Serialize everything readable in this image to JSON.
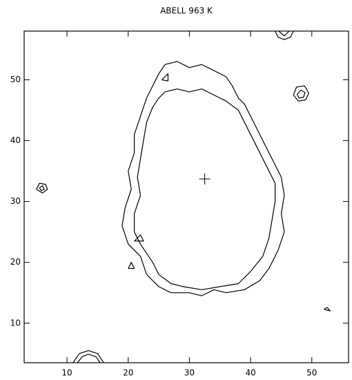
{
  "chart_data": {
    "type": "contour",
    "title": "ABELL 963  K",
    "color": "#000000",
    "xlim": [
      3,
      56
    ],
    "ylim": [
      3.5,
      58
    ],
    "xticks": [
      10,
      20,
      30,
      40,
      50
    ],
    "yticks": [
      10,
      20,
      30,
      40,
      50
    ],
    "marker": {
      "x": 32.5,
      "y": 33.7
    },
    "contours": [
      {
        "x": [
          26,
          28,
          30,
          32,
          34,
          36,
          37,
          38,
          39,
          40,
          41,
          42,
          43.5,
          45,
          45.5,
          45,
          45.5,
          44.5,
          43,
          41.5,
          39,
          36,
          34,
          32,
          30,
          27,
          25,
          23,
          22,
          20,
          19,
          19.5,
          20.5,
          20,
          21,
          21,
          22,
          23,
          24,
          25,
          26
        ],
        "y": [
          52.5,
          53,
          52,
          52.5,
          51.5,
          50.5,
          49,
          47,
          46,
          44,
          42,
          40,
          37,
          34,
          31,
          28,
          25,
          22,
          19,
          17,
          15.5,
          15,
          15.5,
          14.5,
          15,
          15,
          16,
          18,
          21,
          23,
          26,
          29,
          32,
          35,
          38,
          41,
          44,
          47,
          49,
          51,
          52.5
        ]
      },
      {
        "x": [
          26,
          28,
          30,
          32,
          34,
          36,
          38,
          39,
          40,
          41,
          42.5,
          44,
          44,
          43.5,
          43,
          42,
          40,
          38,
          35,
          32,
          29,
          27,
          25,
          24,
          22,
          21,
          21,
          22,
          21.5,
          22,
          22.5,
          23,
          24,
          25,
          26
        ],
        "y": [
          48,
          48.5,
          48,
          48.5,
          47.5,
          46.5,
          45,
          43,
          41,
          39,
          36,
          33,
          30,
          27,
          24,
          21,
          18.5,
          16.5,
          16,
          15.5,
          16,
          16.5,
          18,
          20,
          23,
          25,
          28,
          31,
          34,
          37,
          40,
          43,
          45.5,
          47,
          48
        ]
      },
      {
        "x": [
          5,
          5.5,
          6.5,
          6.8,
          6,
          5
        ],
        "y": [
          32,
          33,
          32.8,
          32,
          31.4,
          32
        ]
      },
      {
        "x": [
          5.5,
          6,
          6.3,
          5.8,
          5.5
        ],
        "y": [
          32.2,
          32.6,
          32,
          31.8,
          32.2
        ]
      },
      {
        "x": [
          47,
          47.5,
          48.8,
          49.5,
          49,
          47.8,
          47
        ],
        "y": [
          47.5,
          48.8,
          49,
          47.8,
          46.7,
          46.5,
          47.5
        ]
      },
      {
        "x": [
          47.6,
          48.2,
          48.9,
          48.6,
          47.9,
          47.6
        ],
        "y": [
          47.6,
          48.3,
          47.9,
          47.1,
          47,
          47.6
        ]
      },
      {
        "x": [
          44,
          44.5,
          45.5,
          46.5,
          47
        ],
        "y": [
          58,
          57,
          56.6,
          57,
          58
        ]
      },
      {
        "x": [
          44.6,
          45.5,
          46.3
        ],
        "y": [
          58,
          57.2,
          58
        ]
      },
      {
        "x": [
          11,
          12,
          13.5,
          15,
          16
        ],
        "y": [
          3.5,
          5,
          5.5,
          5,
          3.5
        ]
      },
      {
        "x": [
          11.7,
          12.5,
          13.5,
          14.7,
          15.4
        ],
        "y": [
          3.5,
          4.5,
          4.9,
          4.5,
          3.5
        ]
      },
      {
        "x": [
          25.5,
          26.5,
          26.5,
          25.5
        ],
        "y": [
          50,
          51,
          49.8,
          50
        ]
      },
      {
        "x": [
          21,
          22,
          22.5,
          21
        ],
        "y": [
          23.5,
          24.5,
          23.5,
          23.5
        ]
      },
      {
        "x": [
          20,
          20.5,
          21,
          20
        ],
        "y": [
          19,
          20,
          19,
          19
        ]
      },
      {
        "x": [
          52,
          53,
          52.5,
          52
        ],
        "y": [
          12.3,
          12,
          12.6,
          12.3
        ]
      }
    ]
  }
}
